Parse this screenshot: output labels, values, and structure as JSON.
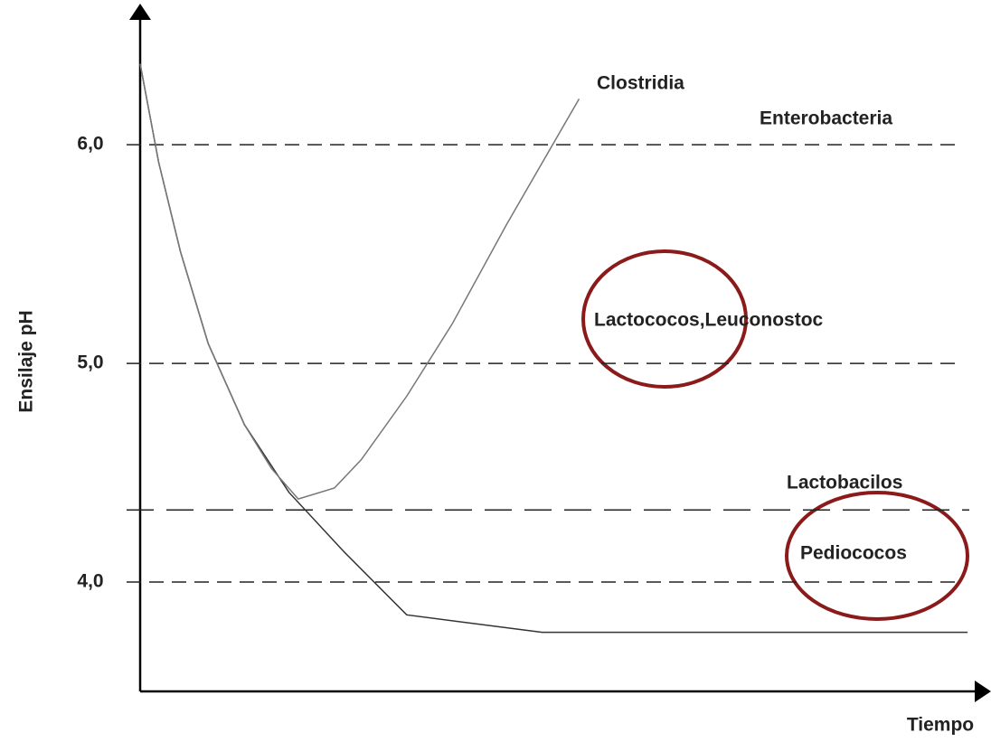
{
  "chart_data": {
    "type": "line",
    "ylabel": "Ensilaje pH",
    "xlabel": "Tiempo",
    "xlim": [
      0,
      100
    ],
    "ylim": [
      3.5,
      6.6
    ],
    "yticks": [
      {
        "value": 6,
        "label": "6,0"
      },
      {
        "value": 5,
        "label": "5,0"
      },
      {
        "value": 4,
        "label": "4,0"
      }
    ],
    "grid": true,
    "reference_lines": [
      4.33
    ],
    "series": [
      {
        "color": "#333333",
        "x": [
          0,
          2.2,
          4.8,
          8.1,
          12.4,
          17.7,
          24.2,
          31.7,
          47.8,
          98.4
        ],
        "values": [
          6.37,
          5.92,
          5.51,
          5.09,
          4.72,
          4.41,
          4.14,
          3.85,
          3.77,
          3.77
        ]
      },
      {
        "color": "#777777",
        "x": [
          0,
          2.2,
          4.8,
          8.1,
          12.4,
          15.6,
          18.8,
          23.1,
          26.3,
          31.7,
          37.1,
          43.5,
          52.2
        ],
        "values": [
          6.37,
          5.92,
          5.51,
          5.09,
          4.72,
          4.52,
          4.38,
          4.43,
          4.56,
          4.85,
          5.18,
          5.63,
          6.21
        ]
      }
    ],
    "annotations": [
      "Clostridia",
      "Enterobacteria",
      "Lactococos,Leuconostoc",
      "Lactobacilos",
      "Pediococos"
    ]
  }
}
